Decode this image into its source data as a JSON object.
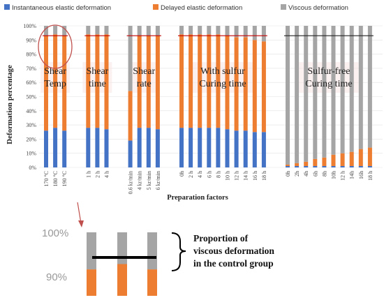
{
  "chart_data": {
    "type": "bar",
    "stacked": true,
    "percent": true,
    "ylabel": "Deformation percentage",
    "xlabel": "Preparation factors",
    "ylim": [
      0,
      100
    ],
    "yticks": [
      "0%",
      "10%",
      "20%",
      "30%",
      "40%",
      "50%",
      "60%",
      "70%",
      "80%",
      "90%",
      "100%"
    ],
    "legend": {
      "placement": "top",
      "entries": [
        {
          "name": "Instantaneous elastic deformation",
          "color": "#4472C4"
        },
        {
          "name": "Delayed elastic deformation",
          "color": "#ED7D31"
        },
        {
          "name": "Viscous deformation",
          "color": "#A5A5A5"
        }
      ]
    },
    "control_line_value": 93,
    "control_line_color": "#C00000",
    "groups": [
      {
        "title": "Shear\nTemp",
        "categories": [
          "170 °C",
          "180 °C",
          "190 °C"
        ],
        "instantaneous": [
          26,
          28,
          26
        ],
        "delayed": [
          67,
          66,
          67
        ],
        "viscous": [
          7,
          6,
          7
        ]
      },
      {
        "title": "Shear\ntime",
        "categories": [
          "1 h",
          "2 h",
          "4 h"
        ],
        "instantaneous": [
          28,
          28,
          27
        ],
        "delayed": [
          66,
          66,
          67
        ],
        "viscous": [
          6,
          6,
          6
        ]
      },
      {
        "title": "Shear\nrate",
        "categories": [
          "0.6 kr/min",
          "4 kr/min",
          "5 kr/min",
          "6 kr/min"
        ],
        "instantaneous": [
          19,
          28,
          28,
          27
        ],
        "delayed": [
          35,
          65,
          65,
          66
        ],
        "viscous": [
          46,
          7,
          7,
          7
        ]
      },
      {
        "title": "With  sulfur\nCuring time",
        "categories": [
          "0h",
          "2 h",
          "4 h",
          "6 h",
          "8 h",
          "10 h",
          "12 h",
          "14 h",
          "16 h",
          "18 h"
        ],
        "instantaneous": [
          28,
          28,
          28,
          28,
          28,
          27,
          26,
          26,
          25,
          25
        ],
        "delayed": [
          66,
          66,
          66,
          66,
          66,
          66,
          66,
          66,
          65,
          64
        ],
        "viscous": [
          6,
          6,
          6,
          6,
          6,
          7,
          8,
          8,
          10,
          11
        ]
      },
      {
        "title": "Sulfur-free\nCuring time",
        "categories": [
          "0h",
          "2h",
          "4h",
          "6h",
          "8h",
          "10h",
          "12 h",
          "14h",
          "16h",
          "18 h"
        ],
        "instantaneous": [
          1,
          1,
          1,
          1,
          1,
          1,
          1,
          1,
          1,
          1
        ],
        "delayed": [
          1,
          2,
          3,
          5,
          6,
          8,
          9,
          10,
          12,
          13
        ],
        "viscous": [
          98,
          97,
          96,
          94,
          93,
          91,
          90,
          89,
          87,
          86
        ]
      }
    ]
  },
  "zoom": {
    "ticks": [
      "100%",
      "90%"
    ],
    "callout": [
      "Proportion of",
      "viscous deformation",
      "in the control group"
    ]
  }
}
